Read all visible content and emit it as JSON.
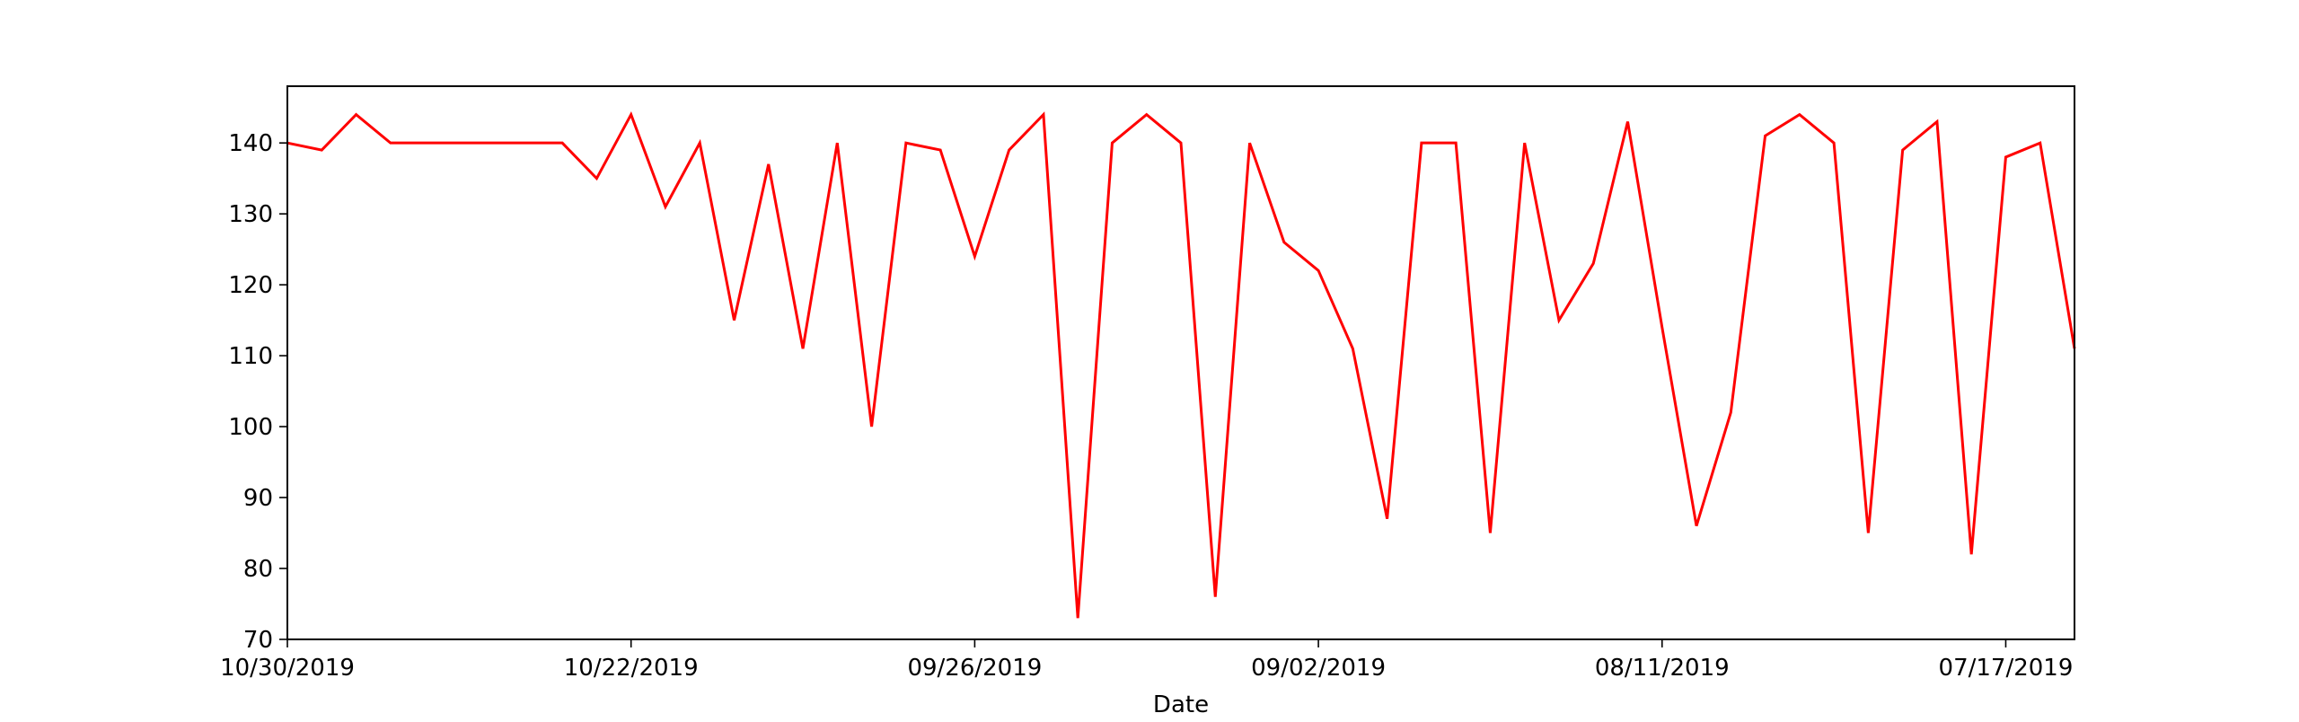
{
  "chart_data": {
    "type": "line",
    "title": "",
    "xlabel": "Date",
    "ylabel": "",
    "ylim": [
      70,
      148
    ],
    "yticks": [
      70,
      80,
      90,
      100,
      110,
      120,
      130,
      140
    ],
    "xticks": [
      {
        "index": 0,
        "label": "10/30/2019"
      },
      {
        "index": 10,
        "label": "10/22/2019"
      },
      {
        "index": 20,
        "label": "09/26/2019"
      },
      {
        "index": 30,
        "label": "09/02/2019"
      },
      {
        "index": 40,
        "label": "08/11/2019"
      },
      {
        "index": 50,
        "label": "07/17/2019"
      }
    ],
    "series": [
      {
        "name": "",
        "color": "#ff0000",
        "values": [
          140,
          139,
          144,
          140,
          140,
          140,
          140,
          140,
          140,
          135,
          144,
          131,
          140,
          115,
          137,
          111,
          140,
          100,
          140,
          139,
          124,
          139,
          144,
          73,
          140,
          144,
          140,
          76,
          140,
          126,
          122,
          111,
          87,
          140,
          140,
          85,
          140,
          115,
          123,
          143,
          114,
          86,
          102,
          141,
          144,
          140,
          85,
          139,
          143,
          82,
          138,
          140,
          111
        ]
      }
    ],
    "grid": false,
    "legend": false
  }
}
